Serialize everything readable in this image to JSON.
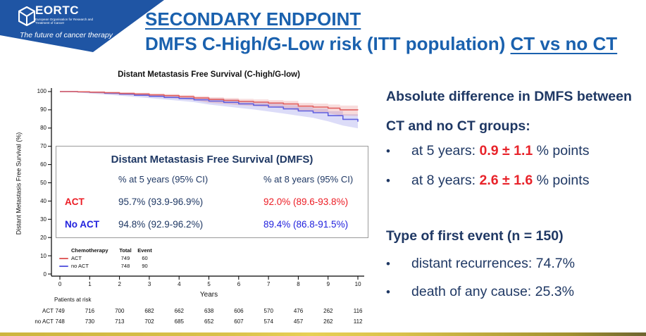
{
  "slide": {
    "logo": {
      "org": "EORTC",
      "org_sub": "European Organisation for Research and Treatment of Cancer",
      "tagline": "The future of cancer therapy"
    },
    "title_line1": "SECONDARY ENDPOINT",
    "title_line2_prefix": "DMFS C-High/G-Low risk (ITT population) ",
    "title_line2_underlined": "CT vs no CT"
  },
  "colors": {
    "banner_blue": "#1f55a4",
    "title_blue": "#1a61ae",
    "navy_text": "#1f3864",
    "act_red": "#ec1c24",
    "noact_blue": "#2222dd",
    "curve_red": "#e06060",
    "curve_blue": "#6060e0",
    "gold_bar": "#d9c14a"
  },
  "chart_data": {
    "type": "line",
    "subtype": "kaplan-meier-step",
    "title": "Distant Metastasis Free Survival (C-high/G-low)",
    "xlabel": "Years",
    "ylabel": "Distant Metastasis Free Survival (%)",
    "xlim": [
      0,
      10
    ],
    "ylim": [
      0,
      100
    ],
    "grid": false,
    "legend_position": "bottom-left-inside",
    "x_ticks": [
      0,
      1,
      2,
      3,
      4,
      5,
      6,
      7,
      8,
      9,
      10
    ],
    "y_ticks": [
      100,
      90,
      80,
      70,
      60,
      50,
      40,
      30,
      20,
      10,
      0
    ],
    "series": [
      {
        "name": "no ACT",
        "color": "#6060e0",
        "band_color": "rgba(96,96,224,0.22)",
        "total": 748,
        "events": 90,
        "points": [
          [
            0,
            100,
            100,
            100
          ],
          [
            0.6,
            99.8,
            99.5,
            100
          ],
          [
            1,
            99.6,
            99.0,
            99.9
          ],
          [
            1.5,
            99.1,
            98.4,
            99.6
          ],
          [
            2,
            98.6,
            97.8,
            99.2
          ],
          [
            2.5,
            98.0,
            97.1,
            98.7
          ],
          [
            3,
            97.4,
            96.4,
            98.2
          ],
          [
            3.5,
            96.8,
            95.7,
            97.7
          ],
          [
            4,
            96.2,
            95.0,
            97.2
          ],
          [
            4.5,
            95.5,
            94.2,
            96.6
          ],
          [
            5,
            94.8,
            92.9,
            96.2
          ],
          [
            5.5,
            94.1,
            92.0,
            95.6
          ],
          [
            6,
            93.3,
            91.1,
            94.9
          ],
          [
            6.5,
            92.5,
            90.2,
            94.2
          ],
          [
            7,
            91.5,
            89.1,
            93.4
          ],
          [
            7.5,
            90.5,
            88.0,
            92.5
          ],
          [
            8,
            89.4,
            86.8,
            91.5
          ],
          [
            8.5,
            88.4,
            85.6,
            90.7
          ],
          [
            9,
            86.8,
            83.7,
            89.3
          ],
          [
            9.5,
            84.8,
            81.4,
            87.6
          ],
          [
            10,
            83.5,
            79.9,
            86.5
          ]
        ]
      },
      {
        "name": "ACT",
        "color": "#e06060",
        "band_color": "rgba(224,96,96,0.22)",
        "total": 749,
        "events": 60,
        "points": [
          [
            0,
            100,
            100,
            100
          ],
          [
            0.6,
            99.9,
            99.6,
            100
          ],
          [
            1,
            99.7,
            99.2,
            99.9
          ],
          [
            1.5,
            99.4,
            98.8,
            99.8
          ],
          [
            2,
            99.0,
            98.3,
            99.5
          ],
          [
            2.5,
            98.7,
            97.9,
            99.3
          ],
          [
            3,
            98.2,
            97.3,
            98.9
          ],
          [
            3.5,
            97.8,
            96.8,
            98.6
          ],
          [
            4,
            97.2,
            96.1,
            98.1
          ],
          [
            4.5,
            96.5,
            95.3,
            97.5
          ],
          [
            5,
            95.7,
            93.9,
            96.9
          ],
          [
            5.5,
            95.2,
            93.3,
            96.5
          ],
          [
            6,
            94.6,
            92.6,
            96.0
          ],
          [
            6.5,
            94.2,
            92.1,
            95.7
          ],
          [
            7,
            93.7,
            91.5,
            95.3
          ],
          [
            7.5,
            93.2,
            90.9,
            94.9
          ],
          [
            8,
            92.0,
            89.6,
            93.8
          ],
          [
            8.5,
            91.5,
            88.9,
            93.4
          ],
          [
            9,
            90.9,
            88.1,
            92.9
          ],
          [
            9.4,
            90.0,
            86.9,
            92.3
          ],
          [
            10,
            89.8,
            86.6,
            92.2
          ]
        ]
      }
    ],
    "legend": {
      "headers": [
        "Chemotherapy",
        "Total",
        "Event"
      ],
      "rows": [
        {
          "name": "ACT",
          "total": "749",
          "event": "60"
        },
        {
          "name": "no ACT",
          "total": "748",
          "event": "90"
        }
      ]
    },
    "at_risk": {
      "label": "Patients at risk",
      "rows": [
        {
          "name": "ACT",
          "values": [
            749,
            716,
            700,
            682,
            662,
            638,
            606,
            570,
            476,
            262,
            116
          ]
        },
        {
          "name": "no ACT",
          "values": [
            748,
            730,
            713,
            702,
            685,
            652,
            607,
            574,
            457,
            262,
            112
          ]
        }
      ]
    }
  },
  "inset_table": {
    "title": "Distant Metastasis Free Survival (DMFS)",
    "col1_header": "% at 5 years (95% CI)",
    "col2_header": "% at 8 years (95% CI)",
    "rows": [
      {
        "label": "ACT",
        "at5": "95.7% (93.9-96.9%)",
        "at8": "92.0% (89.6-93.8%)"
      },
      {
        "label": "No ACT",
        "at5": "94.8% (92.9-96.2%)",
        "at8": "89.4% (86.8-91.5%)"
      }
    ]
  },
  "right_panel": {
    "bullet_char": "•",
    "heading1": "Absolute difference in DMFS between CT and no CT groups:",
    "bullets1": [
      {
        "prefix": "at 5 years: ",
        "highlight": "0.9 ± 1.1",
        "suffix": " % points"
      },
      {
        "prefix": "at 8 years: ",
        "highlight": "2.6 ± 1.6",
        "suffix": " % points"
      }
    ],
    "heading2": "Type of first event (n = 150)",
    "bullets2": [
      "distant recurrences: 74.7%",
      "death of any cause:  25.3%"
    ]
  }
}
